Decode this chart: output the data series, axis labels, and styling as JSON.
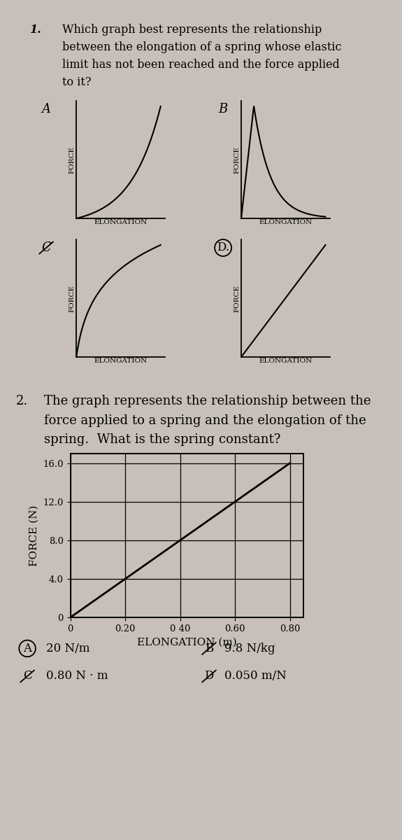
{
  "bg_color": "#c8c0b8",
  "paper_color": "#e8e4de",
  "q1_number": "1.",
  "q1_line1": "Which graph best represents the relationship",
  "q1_line2": "between the elongation of a spring whose elastic",
  "q1_line3": "limit has not been reached and the force applied",
  "q1_line4": "to it?",
  "q2_number": "2.",
  "q2_line1": "The graph represents the relationship between the",
  "q2_line2": "force applied to a spring and the elongation of the",
  "q2_line3": "spring.  What is the spring constant?",
  "ylabel": "FORCE (N)",
  "xlabel": "ELONGATION (m)",
  "ytick_vals": [
    0,
    4.0,
    8.0,
    12.0,
    16.0
  ],
  "ytick_labels": [
    "0",
    "4.0",
    "8.0",
    "12.0",
    "16.0"
  ],
  "xtick_vals": [
    0.0,
    0.2,
    0.4,
    0.6,
    0.8
  ],
  "xtick_labels": [
    "0",
    "0.20",
    "0 40",
    "0.60",
    "0.80"
  ],
  "line_x": [
    0,
    0.8
  ],
  "line_y": [
    0,
    16.0
  ],
  "answer_A": "20 N/m",
  "answer_B": "9.8 N/kg",
  "answer_C": "0.80 N · m",
  "answer_D": "0.050 m/N"
}
